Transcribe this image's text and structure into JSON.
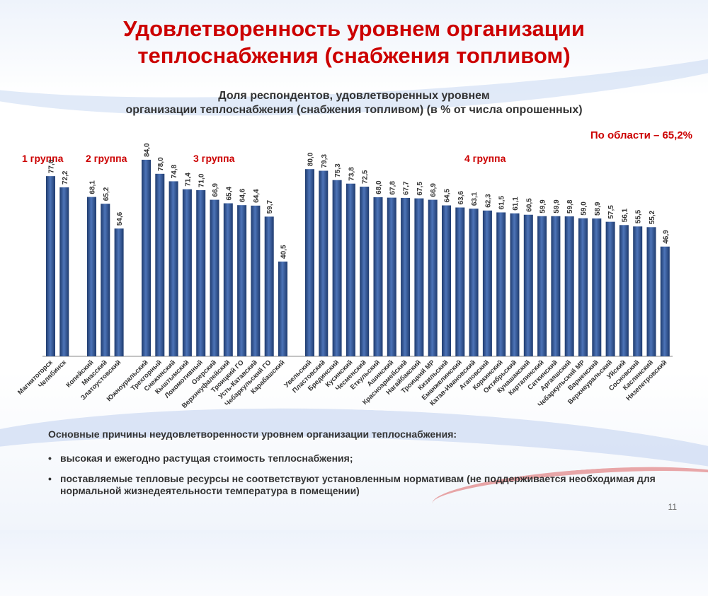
{
  "slide": {
    "title_line1": "Удовлетворенность уровнем организации",
    "title_line2": "теплоснабжения (снабжения топливом)",
    "subtitle_line1": "Доля респондентов, удовлетворенных уровнем",
    "subtitle_line2": "организации теплоснабжения (снабжения топливом) (в % от числа опрошенных)",
    "region_note": "По области – 65,2%",
    "page_number": "11"
  },
  "reasons": {
    "heading": "Основные причины неудовлетворенности уровнем организации теплоснабжения:",
    "items": [
      "высокая и ежегодно растущая стоимость теплоснабжения;",
      "поставляемые тепловые ресурсы не соответствуют установленным нормативам (не поддерживается необходимая для нормальной жизнедеятельности температура в помещении)"
    ]
  },
  "chart_data": {
    "type": "bar",
    "title": "Доля респондентов, удовлетворенных уровнем организации теплоснабжения (снабжения топливом) (в % от числа опрошенных)",
    "ylim": [
      0,
      100
    ],
    "grid": false,
    "colors": {
      "bar_top": "#4d74b8",
      "bar_bottom": "#1f3b6e",
      "label": "#333333",
      "group_label": "#cc0000"
    },
    "groups": [
      {
        "label": "1 группа",
        "categories": [
          "Магнитогорск",
          "Челябинск"
        ],
        "values": [
          77.0,
          72.2
        ],
        "value_labels": [
          "77,0",
          "72,2"
        ]
      },
      {
        "label": "2 группа",
        "categories": [
          "Копейский",
          "Миасский",
          "Златоустовский"
        ],
        "values": [
          68.1,
          65.2,
          54.6
        ],
        "value_labels": [
          "68,1",
          "65,2",
          "54,6"
        ]
      },
      {
        "label": "3 группа",
        "categories": [
          "Южноуральский",
          "Трехгорный",
          "Снежинский",
          "Кыштымский",
          "Локомотивный",
          "Озерский",
          "Верхнеуфалейский",
          "Троицкий ГО",
          "Усть-Катавский",
          "Чебаркульский ГО",
          "Карабашский"
        ],
        "values": [
          84.0,
          78.0,
          74.8,
          71.4,
          71.0,
          66.9,
          65.4,
          64.6,
          64.4,
          59.7,
          40.5
        ],
        "value_labels": [
          "84,0",
          "78,0",
          "74,8",
          "71,4",
          "71,0",
          "66,9",
          "65,4",
          "64,6",
          "64,4",
          "59,7",
          "40,5"
        ]
      },
      {
        "label": "4 группа",
        "categories": [
          "Увельский",
          "Пластовский",
          "Брединский",
          "Кусинский",
          "Чесменский",
          "Еткульский",
          "Ашинский",
          "Красноармейский",
          "Нагайбакский",
          "Троицкий МР",
          "Кизильский",
          "Еманжелинский",
          "Катав-Ивановский",
          "Агаповский",
          "Коркинский",
          "Октябрьский",
          "Кунашакский",
          "Карталинский",
          "Саткинский",
          "Аргаяшский",
          "Чебаркульский МР",
          "Варненский",
          "Верхнеуральский",
          "Уйский",
          "Сосновский",
          "Каслинский",
          "Нязепетровский"
        ],
        "values": [
          80.0,
          79.3,
          75.3,
          73.8,
          72.5,
          68.0,
          67.8,
          67.7,
          67.5,
          66.9,
          64.5,
          63.6,
          63.1,
          62.3,
          61.5,
          61.1,
          60.5,
          59.9,
          59.9,
          59.8,
          59.0,
          58.9,
          57.5,
          56.1,
          55.5,
          55.2,
          46.9
        ],
        "value_labels": [
          "80,0",
          "79,3",
          "75,3",
          "73,8",
          "72,5",
          "68,0",
          "67,8",
          "67,7",
          "67,5",
          "66,9",
          "64,5",
          "63,6",
          "63,1",
          "62,3",
          "61,5",
          "61,1",
          "60,5",
          "59,9",
          "59,9",
          "59,8",
          "59,0",
          "58,9",
          "57,5",
          "56,1",
          "55,5",
          "55,2",
          "46,9"
        ]
      }
    ]
  }
}
